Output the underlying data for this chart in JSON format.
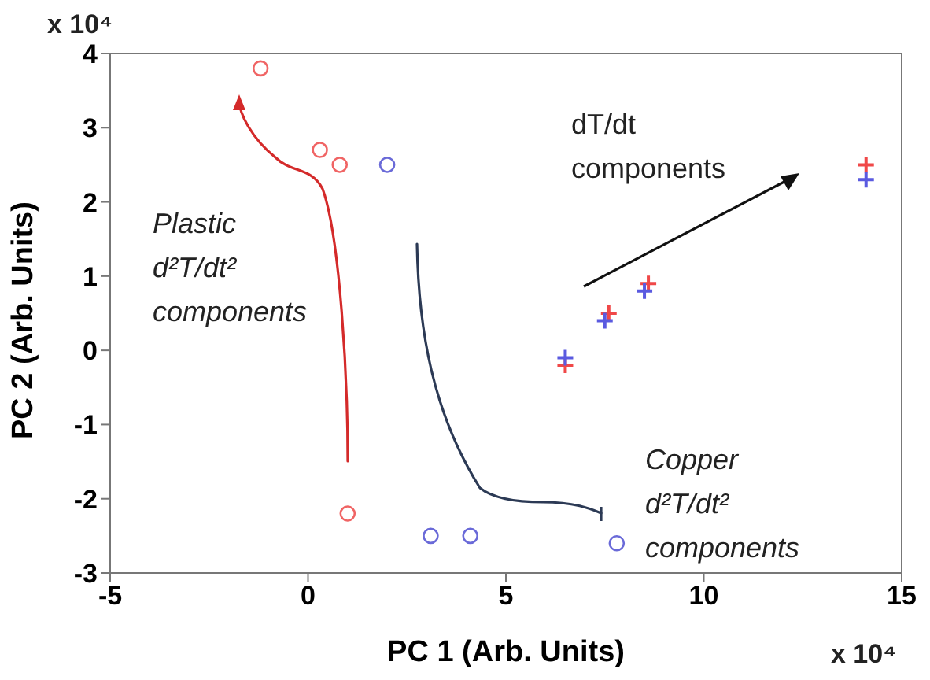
{
  "chart_data": {
    "type": "scatter",
    "xlabel": "PC 1 (Arb. Units)",
    "ylabel": "PC 2 (Arb. Units)",
    "xlim": [
      -5,
      15
    ],
    "xticks": [
      -5,
      0,
      5,
      10,
      15
    ],
    "ylim": [
      -3,
      4
    ],
    "yticks": [
      -3,
      -2,
      -1,
      0,
      1,
      2,
      3,
      4
    ],
    "series": [
      {
        "color": "#f06464",
        "marker": "circle",
        "x": [
          -1.2,
          0.3,
          0.8,
          1.0
        ],
        "values": [
          3.8,
          2.7,
          2.5,
          -2.2
        ]
      },
      {
        "color": "#6a6ad8",
        "marker": "circle",
        "x": [
          2.0,
          3.1,
          4.1,
          7.8
        ],
        "values": [
          2.5,
          -2.5,
          -2.5,
          -2.6
        ]
      },
      {
        "color": "#f04848",
        "marker": "cross",
        "x": [
          6.5,
          7.6,
          8.6,
          14.1
        ],
        "values": [
          -0.2,
          0.5,
          0.9,
          2.5
        ]
      },
      {
        "color": "#5a5ae0",
        "marker": "cross",
        "x": [
          6.5,
          7.5,
          8.5,
          14.1
        ],
        "values": [
          -0.1,
          0.4,
          0.8,
          2.3
        ]
      }
    ],
    "annotations": [
      "Plastic\nd²T/dt²\ncomponents",
      "dT/dt\ncomponents",
      "Copper\nd²T/dt²\ncomponents",
      "x 10⁴",
      "x 10⁴"
    ]
  }
}
